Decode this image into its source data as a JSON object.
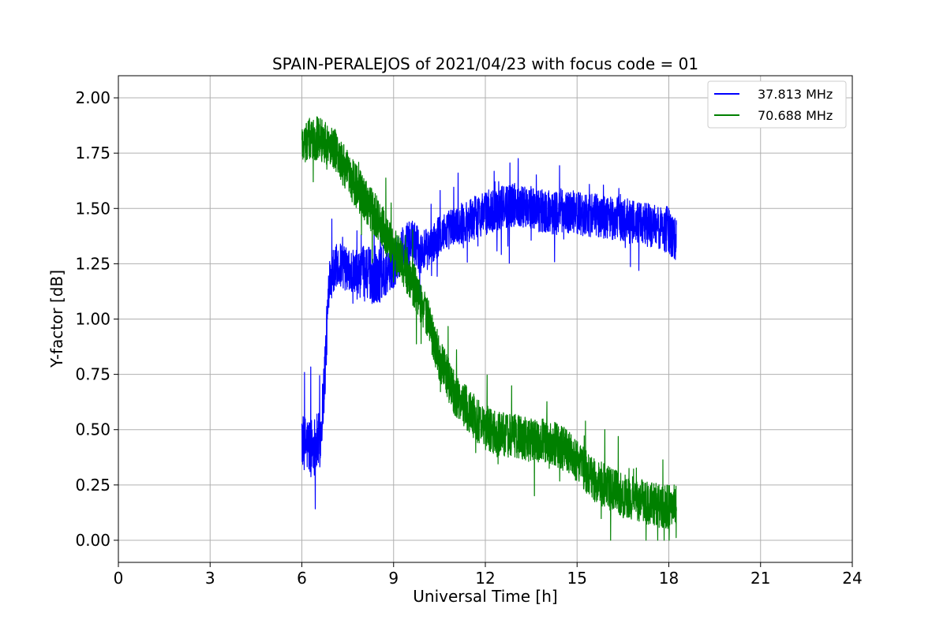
{
  "chart_data": {
    "type": "line",
    "title": "SPAIN-PERALEJOS of 2021/04/23 with focus code = 01",
    "xlabel": "Universal Time [h]",
    "ylabel": "Y-factor [dB]",
    "xlim": [
      0,
      24
    ],
    "ylim": [
      -0.1,
      2.1
    ],
    "xticks": [
      0,
      3,
      6,
      9,
      12,
      15,
      18,
      21,
      24
    ],
    "yticks": [
      0.0,
      0.25,
      0.5,
      0.75,
      1.0,
      1.25,
      1.5,
      1.75,
      2.0
    ],
    "ytick_labels": [
      "0.00",
      "0.25",
      "0.50",
      "0.75",
      "1.00",
      "1.25",
      "1.50",
      "1.75",
      "2.00"
    ],
    "grid": true,
    "legend_position": "top-right",
    "series": [
      {
        "name": "37.813 MHz",
        "color": "#0000ff",
        "x": [
          6.0,
          6.3,
          6.6,
          6.75,
          6.9,
          7.2,
          7.5,
          7.8,
          8.1,
          8.4,
          8.7,
          9.0,
          9.3,
          9.6,
          9.9,
          10.2,
          10.5,
          11.0,
          11.5,
          12.0,
          12.5,
          13.0,
          13.5,
          14.0,
          14.5,
          15.0,
          15.5,
          16.0,
          16.5,
          17.0,
          17.5,
          18.0,
          18.25
        ],
        "y": [
          0.45,
          0.42,
          0.45,
          0.75,
          1.2,
          1.25,
          1.22,
          1.2,
          1.22,
          1.18,
          1.22,
          1.25,
          1.32,
          1.35,
          1.3,
          1.32,
          1.38,
          1.42,
          1.45,
          1.48,
          1.5,
          1.52,
          1.5,
          1.48,
          1.49,
          1.48,
          1.47,
          1.46,
          1.45,
          1.43,
          1.42,
          1.4,
          1.38
        ],
        "noise_amplitude": [
          0.12,
          0.14,
          0.13,
          0.14,
          0.1,
          0.1,
          0.1,
          0.11,
          0.12,
          0.13,
          0.12,
          0.11,
          0.1,
          0.1,
          0.1,
          0.09,
          0.09,
          0.09,
          0.1,
          0.1,
          0.1,
          0.1,
          0.1,
          0.1,
          0.1,
          0.1,
          0.1,
          0.1,
          0.1,
          0.1,
          0.1,
          0.11,
          0.12
        ]
      },
      {
        "name": "70.688 MHz",
        "color": "#008000",
        "x": [
          6.0,
          6.5,
          7.0,
          7.5,
          8.0,
          8.5,
          9.0,
          9.5,
          10.0,
          10.5,
          11.0,
          11.5,
          12.0,
          12.5,
          13.0,
          13.5,
          14.0,
          14.5,
          15.0,
          15.5,
          16.0,
          16.5,
          17.0,
          17.5,
          18.0,
          18.25
        ],
        "y": [
          1.8,
          1.82,
          1.78,
          1.66,
          1.55,
          1.45,
          1.32,
          1.2,
          1.05,
          0.82,
          0.66,
          0.58,
          0.5,
          0.48,
          0.47,
          0.45,
          0.45,
          0.42,
          0.36,
          0.28,
          0.24,
          0.2,
          0.18,
          0.16,
          0.15,
          0.15
        ],
        "noise_amplitude": [
          0.1,
          0.1,
          0.1,
          0.1,
          0.1,
          0.1,
          0.1,
          0.1,
          0.1,
          0.1,
          0.1,
          0.1,
          0.1,
          0.1,
          0.1,
          0.1,
          0.1,
          0.1,
          0.1,
          0.1,
          0.1,
          0.1,
          0.1,
          0.1,
          0.1,
          0.1
        ]
      }
    ]
  }
}
